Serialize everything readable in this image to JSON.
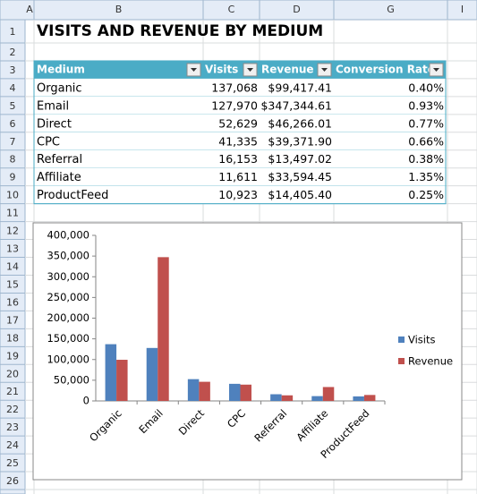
{
  "spreadsheet": {
    "columns": [
      "A",
      "B",
      "C",
      "D",
      "G",
      "I"
    ],
    "rows": [
      1,
      2,
      3,
      4,
      5,
      6,
      7,
      8,
      9,
      10,
      11,
      12,
      13,
      14,
      15,
      16,
      17,
      18,
      19,
      20,
      21,
      22,
      23,
      24,
      25,
      26
    ]
  },
  "title": "VISITS AND REVENUE BY MEDIUM",
  "table": {
    "header": [
      "Medium",
      "Visits",
      "Revenue",
      "Conversion Rate"
    ],
    "rows": [
      [
        "Organic",
        "137,068",
        "$99,417.41",
        "0.40%"
      ],
      [
        "Email",
        "127,970",
        "$347,344.61",
        "0.93%"
      ],
      [
        "Direct",
        "52,629",
        "$46,266.01",
        "0.77%"
      ],
      [
        "CPC",
        "41,335",
        "$39,371.90",
        "0.66%"
      ],
      [
        "Referral",
        "16,153",
        "$13,497.02",
        "0.38%"
      ],
      [
        "Affiliate",
        "11,611",
        "$33,594.45",
        "1.35%"
      ],
      [
        "ProductFeed",
        "10,923",
        "$14,405.40",
        "0.25%"
      ]
    ]
  },
  "chart_data": {
    "type": "bar",
    "categories": [
      "Organic",
      "Email",
      "Direct",
      "CPC",
      "Referral",
      "Affiliate",
      "ProductFeed"
    ],
    "series": [
      {
        "name": "Visits",
        "color": "#4f81bd",
        "values": [
          137068,
          127970,
          52629,
          41335,
          16153,
          11611,
          10923
        ]
      },
      {
        "name": "Revenue",
        "color": "#c0504d",
        "values": [
          99417.41,
          347344.61,
          46266.01,
          39371.9,
          13497.02,
          33594.45,
          14405.4
        ]
      }
    ],
    "ylim": [
      0,
      400000
    ],
    "yticks": [
      0,
      {
        "value": 50000,
        "label": "50,000"
      },
      {
        "value": 100000,
        "label": "100,000"
      },
      {
        "value": 150000,
        "label": "150,000"
      },
      {
        "value": 200000,
        "label": "200,000"
      },
      {
        "value": 250000,
        "label": "250,000"
      },
      {
        "value": 300000,
        "label": "300,000"
      },
      {
        "value": 350000,
        "label": "350,000"
      },
      {
        "value": 400000,
        "label": "400,000"
      }
    ],
    "grid": false,
    "legend": "right"
  }
}
